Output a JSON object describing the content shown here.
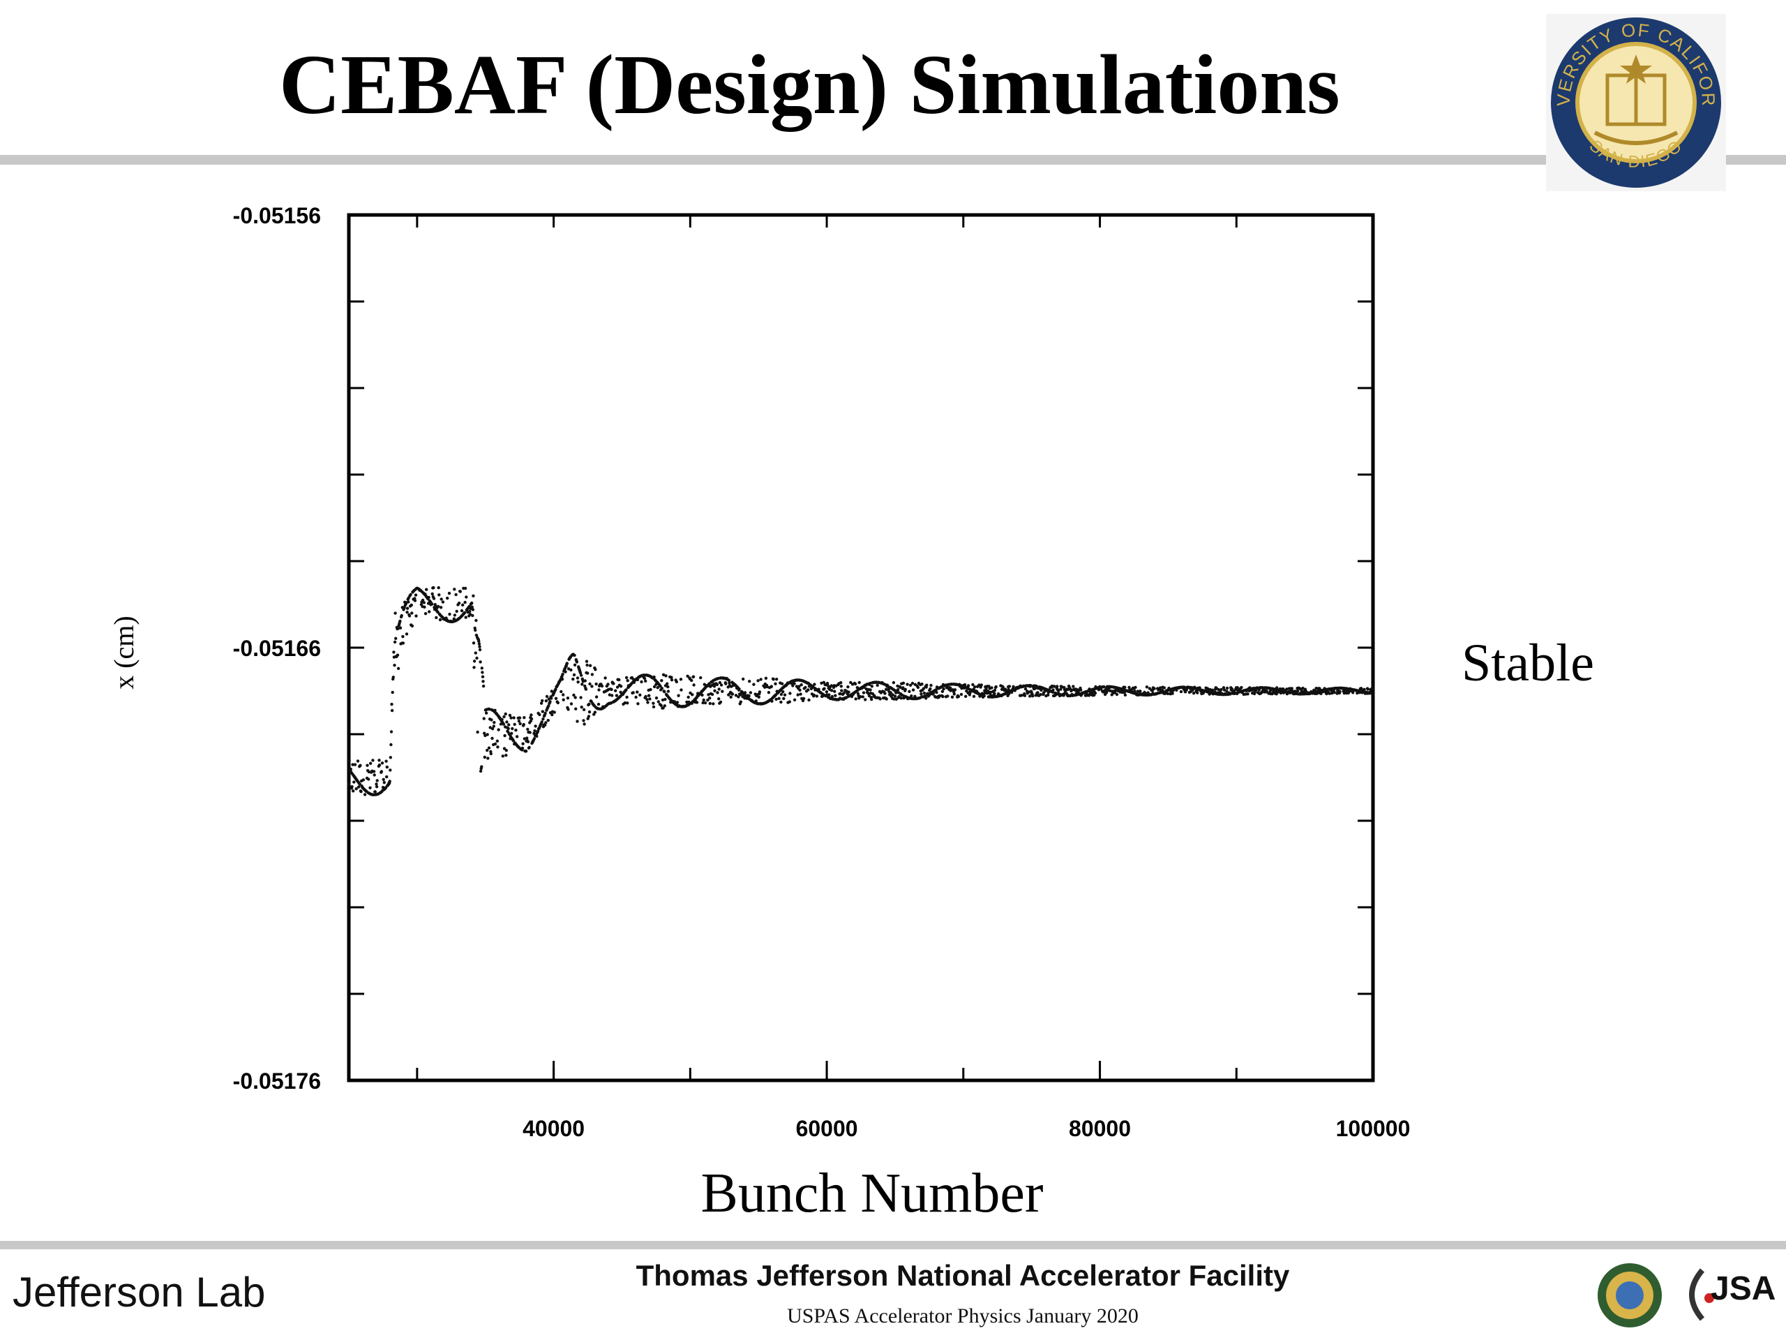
{
  "slide": {
    "title": "CEBAF (Design) Simulations",
    "side_label": "Stable",
    "seal": {
      "name": "university-seal",
      "top_text": "UNIVERSITY OF CALIFORNIA",
      "bottom_text": "SAN DIEGO",
      "ring_color": "#1d3a6e",
      "gold_color": "#d4b24a"
    }
  },
  "footer": {
    "logo_text": "Jefferson Lab",
    "title": "Thomas Jefferson National Accelerator Facility",
    "subtitle": "USPAS Accelerator Physics January 2020",
    "jsa_text": "JSA"
  },
  "chart_data": {
    "type": "scatter",
    "title": "",
    "xlabel": "Bunch Number",
    "ylabel": "x (cm)",
    "xlim": [
      25000,
      100000
    ],
    "ylim": [
      -0.05176,
      -0.05156
    ],
    "x_ticks": [
      40000,
      60000,
      80000,
      100000
    ],
    "x_tick_labels": [
      "40000",
      "60000",
      "80000",
      "100000"
    ],
    "y_ticks": [
      -0.05156,
      -0.05166,
      -0.05176
    ],
    "y_tick_labels": [
      "-0.05156",
      "-0.05166",
      "-0.05176"
    ],
    "grid": false,
    "envelope": {
      "description_free": true,
      "x": [
        25000,
        28000,
        28300,
        30000,
        34000,
        34500,
        35000,
        38000,
        40500,
        41500,
        44000,
        48000,
        52000,
        56000,
        60000,
        64000,
        70000,
        80000,
        90000,
        100000
      ],
      "center": [
        -0.05169,
        -0.05169,
        -0.05166,
        -0.05165,
        -0.05165,
        -0.05167,
        -0.05168,
        -0.05168,
        -0.05167,
        -0.05167,
        -0.05167,
        -0.05167,
        -0.05167,
        -0.05167,
        -0.05167,
        -0.05167,
        -0.05167,
        -0.05167,
        -0.05167,
        -0.05167
      ],
      "halfwidth": [
        4e-06,
        4e-06,
        8e-06,
        4e-06,
        4e-06,
        2e-05,
        6e-06,
        4e-06,
        3e-06,
        1e-05,
        3e-06,
        4e-06,
        3e-06,
        3e-06,
        2e-06,
        2e-06,
        1.5e-06,
        1e-06,
        8e-07,
        6e-07
      ]
    },
    "colors": {
      "points": "#111111",
      "axes": "#000000"
    }
  }
}
